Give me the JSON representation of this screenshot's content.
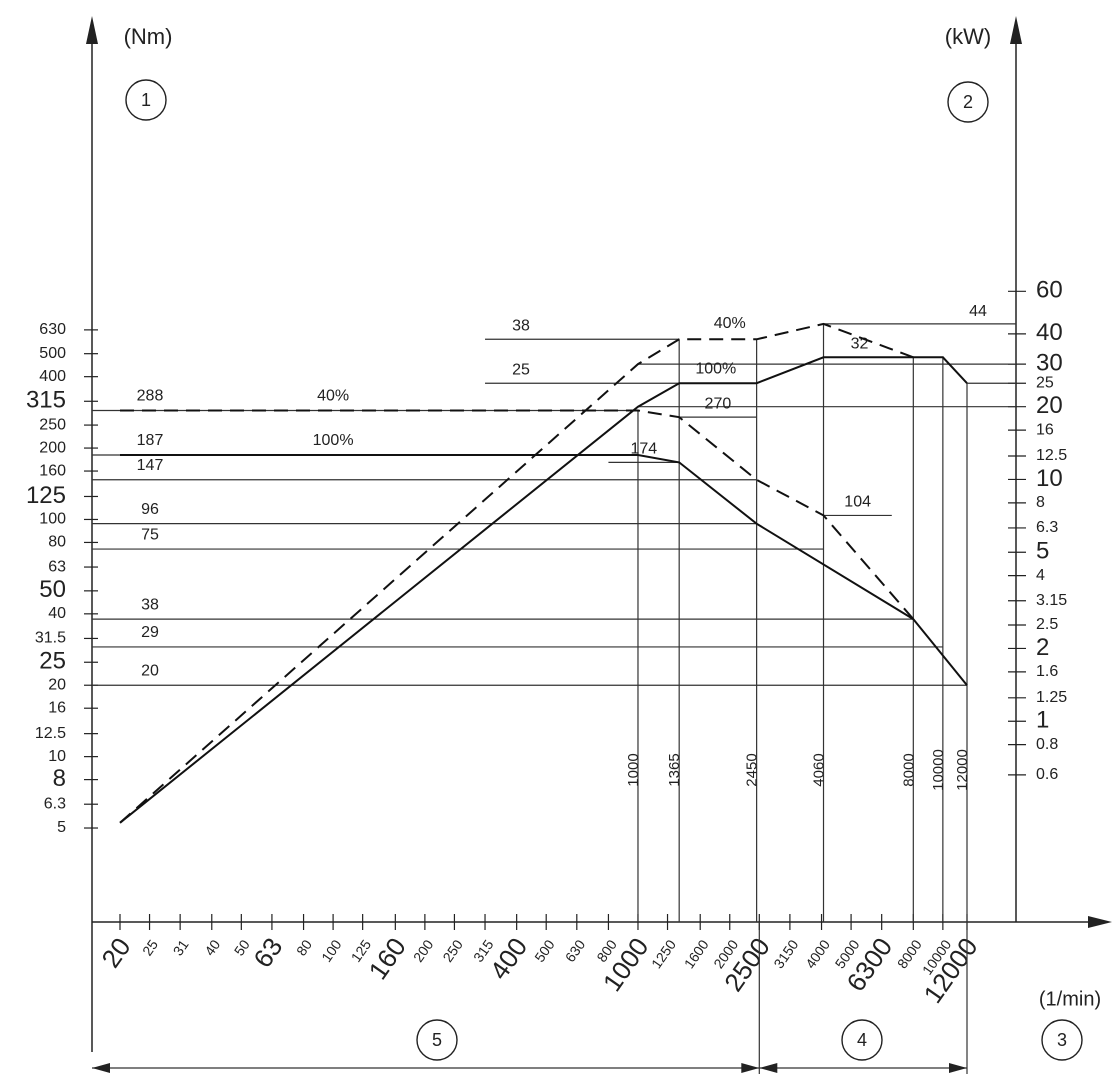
{
  "chart_data": {
    "type": "line",
    "x_scale": "log",
    "axes": {
      "left_unit": "(Nm)",
      "right_unit": "(kW)",
      "x_unit": "(1/min)",
      "left_ticks": [
        {
          "v": 5,
          "t": "5",
          "big": false
        },
        {
          "v": 6.3,
          "t": "6.3",
          "big": false
        },
        {
          "v": 8,
          "t": "8",
          "big": true
        },
        {
          "v": 10,
          "t": "10",
          "big": false
        },
        {
          "v": 12.5,
          "t": "12.5",
          "big": false
        },
        {
          "v": 16,
          "t": "16",
          "big": false
        },
        {
          "v": 20,
          "t": "20",
          "big": false
        },
        {
          "v": 25,
          "t": "25",
          "big": true
        },
        {
          "v": 31.5,
          "t": "31.5",
          "big": false
        },
        {
          "v": 40,
          "t": "40",
          "big": false
        },
        {
          "v": 50,
          "t": "50",
          "big": true
        },
        {
          "v": 63,
          "t": "63",
          "big": false
        },
        {
          "v": 80,
          "t": "80",
          "big": false
        },
        {
          "v": 100,
          "t": "100",
          "big": false
        },
        {
          "v": 125,
          "t": "125",
          "big": true
        },
        {
          "v": 160,
          "t": "160",
          "big": false
        },
        {
          "v": 200,
          "t": "200",
          "big": false
        },
        {
          "v": 250,
          "t": "250",
          "big": false
        },
        {
          "v": 315,
          "t": "315",
          "big": true
        },
        {
          "v": 400,
          "t": "400",
          "big": false
        },
        {
          "v": 500,
          "t": "500",
          "big": false
        },
        {
          "v": 630,
          "t": "630",
          "big": false
        }
      ],
      "right_ticks": [
        {
          "v": 0.6,
          "t": "0.6",
          "big": false
        },
        {
          "v": 0.8,
          "t": "0.8",
          "big": false
        },
        {
          "v": 1,
          "t": "1",
          "big": true
        },
        {
          "v": 1.25,
          "t": "1.25",
          "big": false
        },
        {
          "v": 1.6,
          "t": "1.6",
          "big": false
        },
        {
          "v": 2,
          "t": "2",
          "big": true
        },
        {
          "v": 2.5,
          "t": "2.5",
          "big": false
        },
        {
          "v": 3.15,
          "t": "3.15",
          "big": false
        },
        {
          "v": 4,
          "t": "4",
          "big": false
        },
        {
          "v": 5,
          "t": "5",
          "big": true
        },
        {
          "v": 6.3,
          "t": "6.3",
          "big": false
        },
        {
          "v": 8,
          "t": "8",
          "big": false
        },
        {
          "v": 10,
          "t": "10",
          "big": true
        },
        {
          "v": 12.5,
          "t": "12.5",
          "big": false
        },
        {
          "v": 16,
          "t": "16",
          "big": false
        },
        {
          "v": 20,
          "t": "20",
          "big": true
        },
        {
          "v": 25,
          "t": "25",
          "big": false
        },
        {
          "v": 30,
          "t": "30",
          "big": true
        },
        {
          "v": 40,
          "t": "40",
          "big": true
        },
        {
          "v": 60,
          "t": "60",
          "big": true
        }
      ],
      "x_ticks": [
        {
          "v": 20,
          "t": "20",
          "big": true
        },
        {
          "v": 25,
          "t": "25",
          "big": false
        },
        {
          "v": 31.5,
          "t": "31",
          "big": false
        },
        {
          "v": 40,
          "t": "40",
          "big": false
        },
        {
          "v": 50,
          "t": "50",
          "big": false
        },
        {
          "v": 63,
          "t": "63",
          "big": true
        },
        {
          "v": 80,
          "t": "80",
          "big": false
        },
        {
          "v": 100,
          "t": "100",
          "big": false
        },
        {
          "v": 125,
          "t": "125",
          "big": false
        },
        {
          "v": 160,
          "t": "160",
          "big": true
        },
        {
          "v": 200,
          "t": "200",
          "big": false
        },
        {
          "v": 250,
          "t": "250",
          "big": false
        },
        {
          "v": 315,
          "t": "315",
          "big": false
        },
        {
          "v": 400,
          "t": "400",
          "big": true
        },
        {
          "v": 500,
          "t": "500",
          "big": false
        },
        {
          "v": 630,
          "t": "630",
          "big": false
        },
        {
          "v": 800,
          "t": "800",
          "big": false
        },
        {
          "v": 1000,
          "t": "1000",
          "big": true
        },
        {
          "v": 1250,
          "t": "1250",
          "big": false
        },
        {
          "v": 1600,
          "t": "1600",
          "big": false
        },
        {
          "v": 2000,
          "t": "2000",
          "big": false
        },
        {
          "v": 2500,
          "t": "2500",
          "big": true
        },
        {
          "v": 3150,
          "t": "3150",
          "big": false
        },
        {
          "v": 4000,
          "t": "4000",
          "big": false
        },
        {
          "v": 5000,
          "t": "5000",
          "big": false
        },
        {
          "v": 6300,
          "t": "6300",
          "big": true
        },
        {
          "v": 8000,
          "t": "8000",
          "big": false
        },
        {
          "v": 10000,
          "t": "10000",
          "big": false
        },
        {
          "v": 12000,
          "t": "12000",
          "big": true
        }
      ]
    },
    "markers": [
      "1",
      "2",
      "3",
      "4",
      "5"
    ],
    "ref_speeds": [
      {
        "v": 1000,
        "t": "1000"
      },
      {
        "v": 1365,
        "t": "1365"
      },
      {
        "v": 2450,
        "t": "2450"
      },
      {
        "v": 4060,
        "t": "4060"
      },
      {
        "v": 8000,
        "t": "8000"
      },
      {
        "v": 10000,
        "t": "10000"
      },
      {
        "v": 12000,
        "t": "12000"
      }
    ],
    "torque_levels": [
      {
        "v": 288,
        "t": "288",
        "x_end": 1000
      },
      {
        "v": 187,
        "t": "187",
        "x_end": 1000
      },
      {
        "v": 147,
        "t": "147",
        "x_end": 2450
      },
      {
        "v": 96,
        "t": "96",
        "x_end": 2450
      },
      {
        "v": 75,
        "t": "75",
        "x_end": 4060
      },
      {
        "v": 38,
        "t": "38",
        "x_end": 8000
      },
      {
        "v": 29,
        "t": "29",
        "x_end": 10000
      },
      {
        "v": 20,
        "t": "20",
        "x_end": 12000
      }
    ],
    "power_levels": [
      {
        "v": 44,
        "t": "44",
        "x_start": 4060
      },
      {
        "v": 30,
        "t": "",
        "x_start": 1000
      },
      {
        "v": 25,
        "t": "",
        "x_start": 12000
      },
      {
        "v": 20,
        "t": "",
        "x_start": 1000
      }
    ],
    "power_callouts": [
      {
        "v": 38,
        "t": "38",
        "x_from": 315,
        "x_to": 1365
      },
      {
        "v": 25,
        "t": "25",
        "x_from": 315,
        "x_to": 1365
      },
      {
        "v": 32,
        "t": "32",
        "x_from": 4060,
        "x_to": 8000
      }
    ],
    "torque_callouts": [
      {
        "v": 270,
        "t": "270",
        "x_from": 1365,
        "x_to": 2450
      },
      {
        "v": 174,
        "t": "174",
        "x_from": 800,
        "x_to": 1365
      },
      {
        "v": 104,
        "t": "104",
        "x_from": 4060,
        "x_to": 6800
      }
    ],
    "series": [
      {
        "name": "100%",
        "quantity": "torque",
        "style": "solid",
        "points": [
          [
            20,
            187
          ],
          [
            1000,
            187
          ],
          [
            1365,
            174
          ],
          [
            2450,
            96
          ],
          [
            8000,
            38
          ],
          [
            12000,
            20
          ]
        ]
      },
      {
        "name": "40%",
        "quantity": "torque",
        "style": "dashed",
        "points": [
          [
            20,
            288
          ],
          [
            1000,
            288
          ],
          [
            1365,
            270
          ],
          [
            2450,
            147
          ],
          [
            4060,
            104
          ],
          [
            8000,
            38
          ]
        ]
      },
      {
        "name": "100%",
        "quantity": "power",
        "style": "solid",
        "points": [
          [
            20,
            0.38
          ],
          [
            1000,
            20
          ],
          [
            1365,
            25
          ],
          [
            2450,
            25
          ],
          [
            4060,
            32
          ],
          [
            10000,
            32
          ],
          [
            12000,
            25
          ]
        ]
      },
      {
        "name": "40%",
        "quantity": "power",
        "style": "dashed",
        "points": [
          [
            20,
            0.38
          ],
          [
            1000,
            30
          ],
          [
            1365,
            38
          ],
          [
            2450,
            38
          ],
          [
            4060,
            44
          ],
          [
            8000,
            32
          ]
        ]
      }
    ],
    "series_labels": [
      {
        "t": "40%",
        "quantity": "torque",
        "x": 100,
        "v": 300
      },
      {
        "t": "100%",
        "quantity": "torque",
        "x": 100,
        "v": 195
      },
      {
        "t": "40%",
        "quantity": "power",
        "x": 2000,
        "v": 40
      },
      {
        "t": "100%",
        "quantity": "power",
        "x": 1800,
        "v": 26
      }
    ],
    "grid": false,
    "legend": "none"
  }
}
